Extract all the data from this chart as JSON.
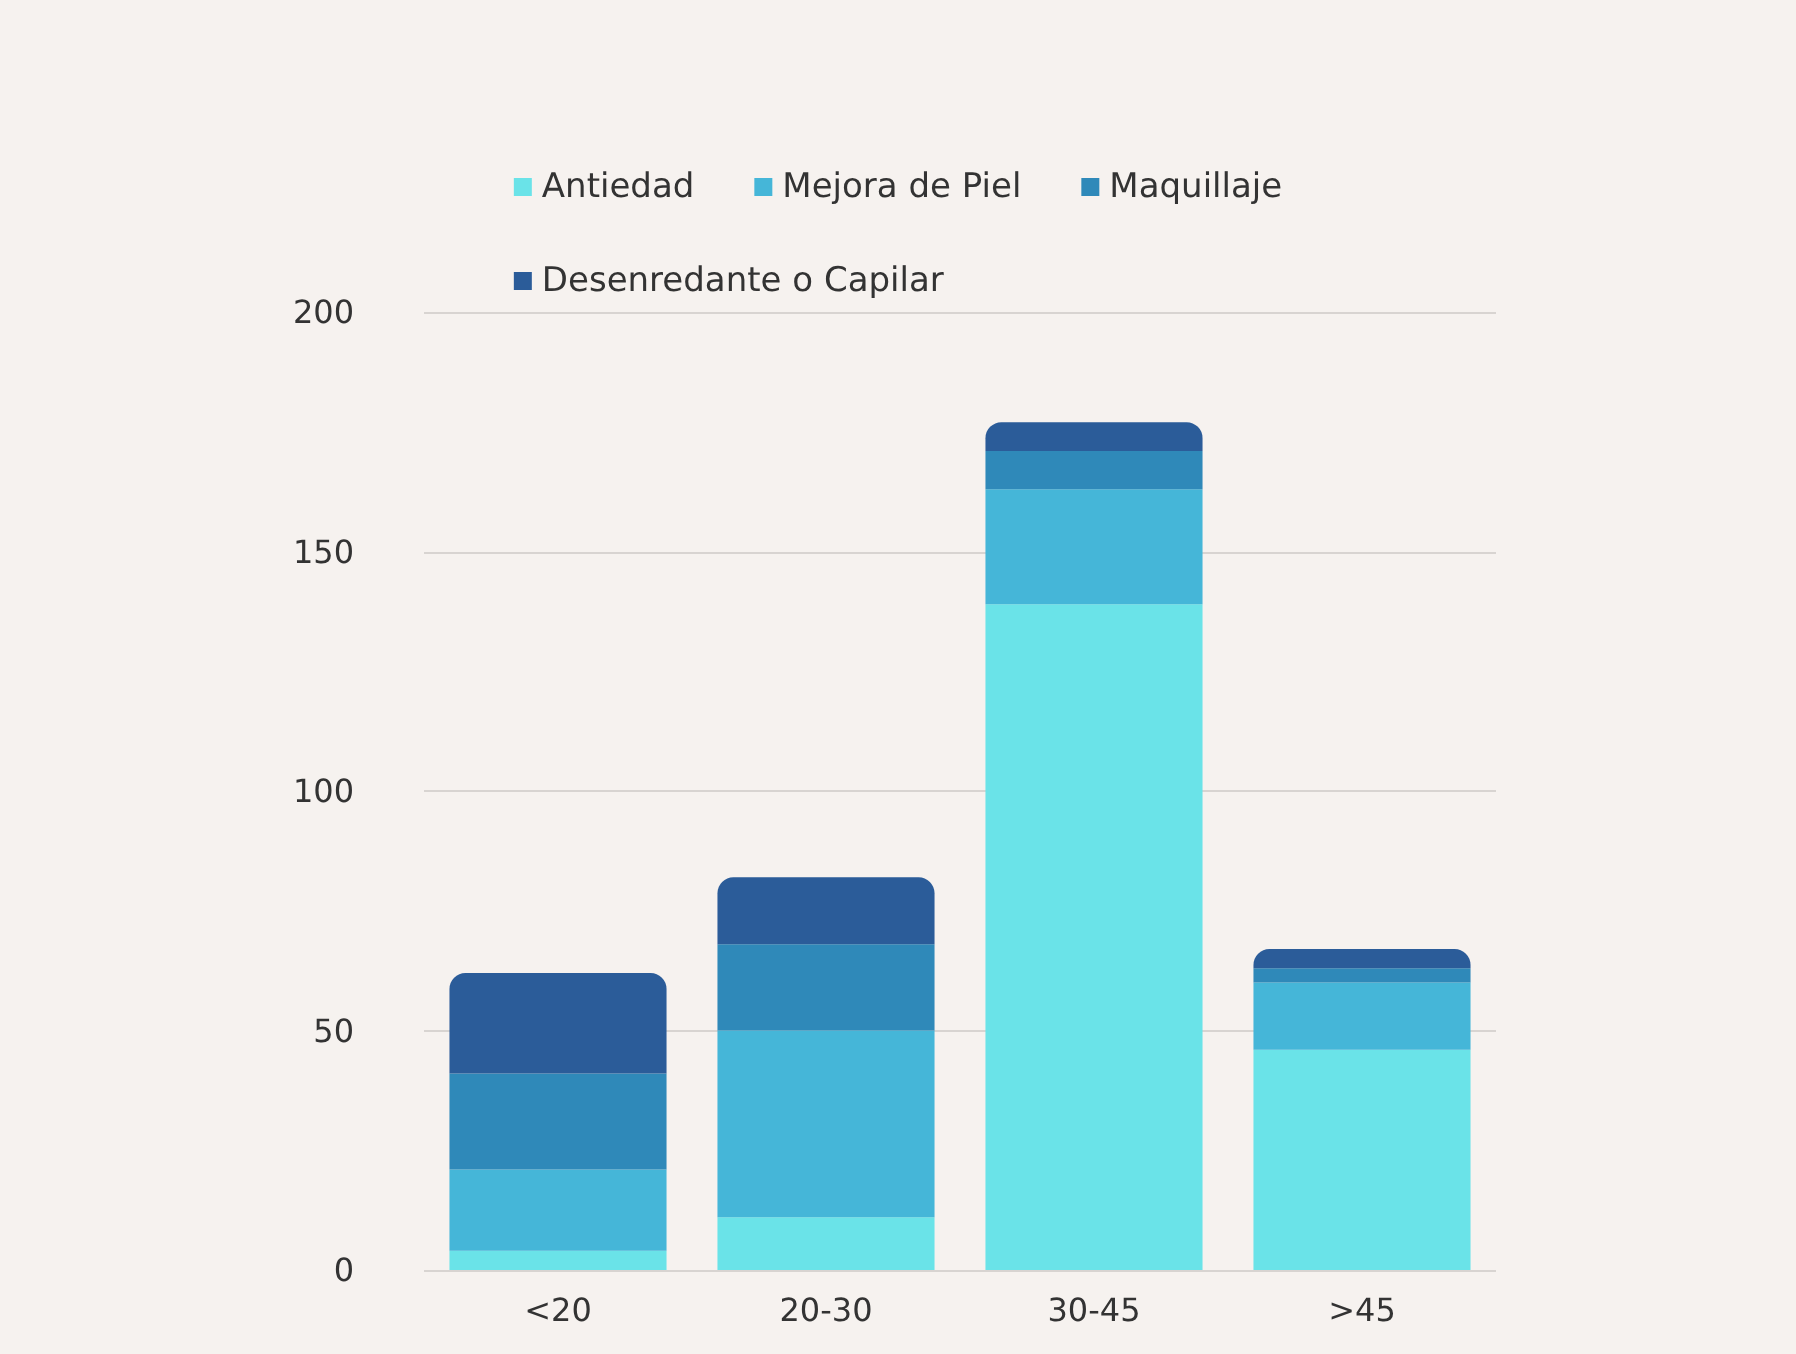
{
  "chart_data": {
    "type": "bar",
    "stacked": true,
    "categories": [
      "<20",
      "20-30",
      "30-45",
      ">45"
    ],
    "series": [
      {
        "name": "Antiedad",
        "color": "#6ae3e8",
        "values": [
          4,
          11,
          139,
          46
        ]
      },
      {
        "name": "Mejora de Piel",
        "color": "#45b6d8",
        "values": [
          17,
          39,
          24,
          14
        ]
      },
      {
        "name": "Maquillaje",
        "color": "#2f89b9",
        "values": [
          20,
          18,
          8,
          3
        ]
      },
      {
        "name": "Desenredante o Capilar",
        "color": "#2b5c99",
        "values": [
          21,
          14,
          6,
          4
        ]
      }
    ],
    "ylim": [
      0,
      200
    ],
    "yticks": [
      0,
      50,
      100,
      150,
      200
    ],
    "grid": "y",
    "legend": "top"
  }
}
